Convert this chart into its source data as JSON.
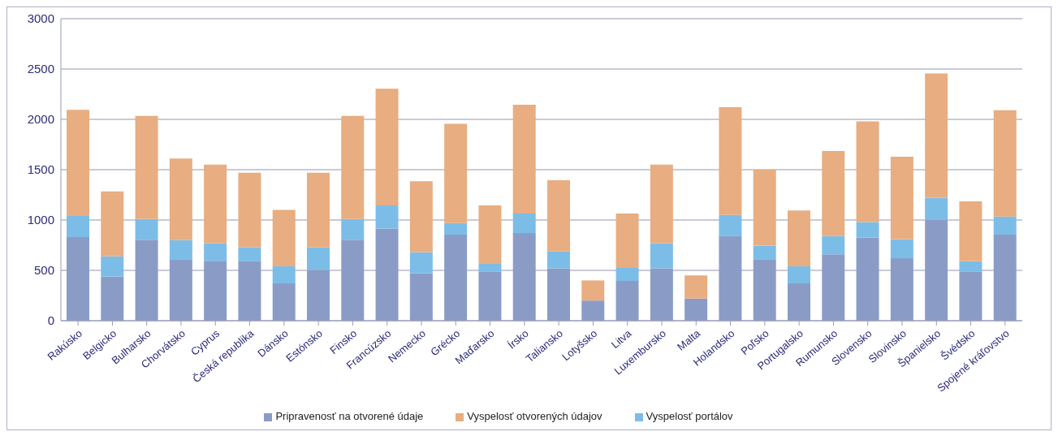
{
  "chart_data": {
    "type": "bar",
    "stacked": true,
    "categories": [
      "Rakúsko",
      "Belgicko",
      "Bulharsko",
      "Chorvátsko",
      "Cyprus",
      "Česká republika",
      "Dánsko",
      "Estónsko",
      "Finsko",
      "Francúzsko",
      "Nemecko",
      "Grécko",
      "Maďarsko",
      "Írsko",
      "Taliansko",
      "Lotyšsko",
      "Litva",
      "Luxembursko",
      "Malta",
      "Holandsko",
      "Poľsko",
      "Portugalsko",
      "Rumunsko",
      "Slovensko",
      "Slovinsko",
      "Španielsko",
      "Švédsko",
      "Spojené kráľovstvo"
    ],
    "series": [
      {
        "name": "Pripravenosť na otvorené údaje",
        "color": "#8a9cc6",
        "values": [
          830,
          440,
          805,
          610,
          595,
          590,
          370,
          505,
          805,
          915,
          470,
          855,
          485,
          870,
          520,
          200,
          395,
          520,
          220,
          840,
          610,
          370,
          660,
          825,
          620,
          1005,
          485,
          855
        ]
      },
      {
        "name": "Vyspelosť portálov",
        "color": "#7cbde8",
        "values": [
          210,
          200,
          205,
          190,
          175,
          140,
          170,
          225,
          205,
          230,
          210,
          115,
          80,
          195,
          170,
          0,
          130,
          250,
          0,
          210,
          135,
          170,
          180,
          155,
          190,
          215,
          105,
          180
        ]
      },
      {
        "name": "Vyspelosť otvorených údajov",
        "color": "#e8ad80",
        "values": [
          1055,
          645,
          1025,
          810,
          780,
          740,
          560,
          740,
          1025,
          1160,
          705,
          985,
          580,
          1080,
          705,
          200,
          540,
          780,
          230,
          1070,
          755,
          555,
          845,
          1000,
          820,
          1235,
          595,
          1055
        ]
      }
    ],
    "ylim": [
      0,
      3000
    ],
    "yticks": [
      0,
      500,
      1000,
      1500,
      2000,
      2500,
      3000
    ],
    "grid": "y",
    "legend": "bottom"
  }
}
